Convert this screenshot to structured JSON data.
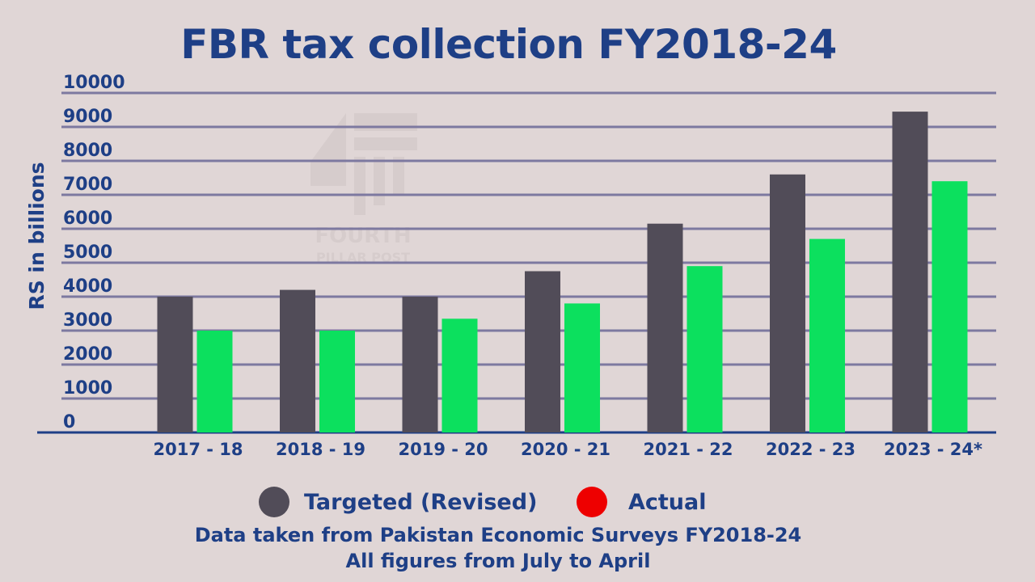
{
  "title": "FBR tax collection FY2018-24",
  "watermark": {
    "line1": "FOURTH",
    "line2": "PILLAR POST"
  },
  "legend": [
    {
      "label": "Targeted (Revised)",
      "color": "#514c58"
    },
    {
      "label": "Actual",
      "color": "#ee0000"
    }
  ],
  "notes": {
    "source": "Data taken from Pakistan Economic Surveys FY2018-24",
    "period": "All figures from July to April"
  },
  "colors": {
    "targeted_bar": "#514c58",
    "actual_bar": "#0ce05e",
    "text": "#1e3f86",
    "gridline": "#7d79a0",
    "background": "#e0d6d6"
  },
  "chart_data": {
    "type": "bar",
    "title": "FBR tax collection FY2018-24",
    "xlabel": "",
    "ylabel": "RS in billions",
    "ylim": [
      0,
      10000
    ],
    "yticks": [
      0,
      1000,
      2000,
      3000,
      4000,
      5000,
      6000,
      7000,
      8000,
      9000,
      10000
    ],
    "grid": true,
    "categories": [
      "2017 - 18",
      "2018 - 19",
      "2019 - 20",
      "2020 - 21",
      "2021 - 22",
      "2022 - 23",
      "2023 - 24*"
    ],
    "series": [
      {
        "name": "Targeted (Revised)",
        "values": [
          4000,
          4200,
          4000,
          4750,
          6150,
          7600,
          9450
        ]
      },
      {
        "name": "Actual",
        "values": [
          3000,
          3000,
          3350,
          3800,
          4900,
          5700,
          7400
        ]
      }
    ],
    "legend_position": "bottom"
  }
}
